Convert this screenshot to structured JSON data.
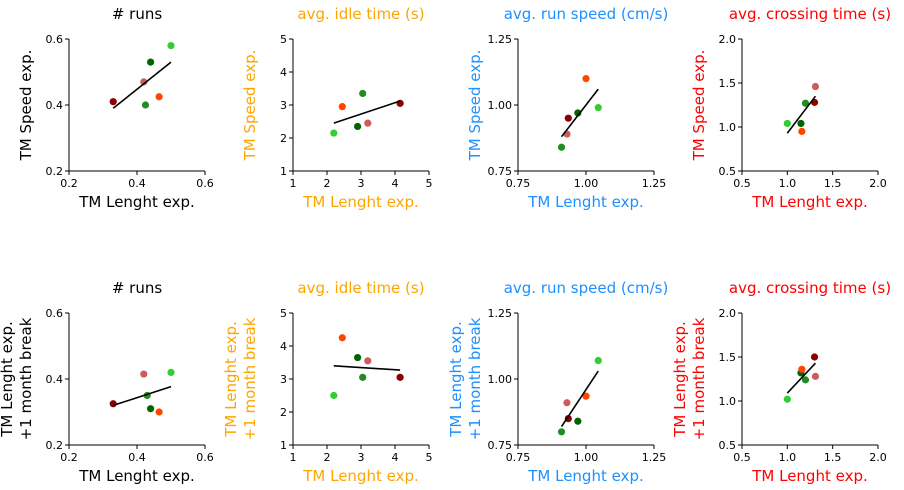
{
  "colors": {
    "black": "#000000",
    "orange": "#FFA500",
    "blue": "#1E90FF",
    "red": "#FF0000",
    "point_palette": [
      "#8B0000",
      "#CD5C5C",
      "#FF4500",
      "#006400",
      "#228B22",
      "#32CD32"
    ]
  },
  "chart_data": [
    {
      "type": "scatter",
      "title": "# runs",
      "color": "#000000",
      "xlabel": "TM Lenght exp.",
      "ylabel": [
        "TM Speed exp."
      ],
      "xlim": [
        0.2,
        0.6
      ],
      "ylim": [
        0.2,
        0.6
      ],
      "xticks": [
        "0.2",
        "0.4",
        "0.6"
      ],
      "yticks": [
        "0.2",
        "0.4",
        "0.6"
      ],
      "points": [
        {
          "x": 0.33,
          "y": 0.41,
          "color": "#8B0000"
        },
        {
          "x": 0.42,
          "y": 0.47,
          "color": "#CD5C5C"
        },
        {
          "x": 0.425,
          "y": 0.4,
          "color": "#228B22"
        },
        {
          "x": 0.44,
          "y": 0.53,
          "color": "#006400"
        },
        {
          "x": 0.465,
          "y": 0.425,
          "color": "#FF4500"
        },
        {
          "x": 0.5,
          "y": 0.58,
          "color": "#32CD32"
        }
      ],
      "fit": [
        [
          0.33,
          0.39
        ],
        [
          0.5,
          0.53
        ]
      ]
    },
    {
      "type": "scatter",
      "title": "avg. idle time (s)",
      "color": "#FFA500",
      "xlabel": "TM Lenght exp.",
      "ylabel": [
        "TM Speed exp."
      ],
      "xlim": [
        1,
        5
      ],
      "ylim": [
        1,
        5
      ],
      "xticks": [
        "1",
        "2",
        "3",
        "4",
        "5"
      ],
      "yticks": [
        "1",
        "2",
        "3",
        "4",
        "5"
      ],
      "points": [
        {
          "x": 2.2,
          "y": 2.15,
          "color": "#32CD32"
        },
        {
          "x": 2.45,
          "y": 2.95,
          "color": "#FF4500"
        },
        {
          "x": 2.9,
          "y": 2.35,
          "color": "#006400"
        },
        {
          "x": 3.05,
          "y": 3.35,
          "color": "#228B22"
        },
        {
          "x": 3.2,
          "y": 2.45,
          "color": "#CD5C5C"
        },
        {
          "x": 4.15,
          "y": 3.05,
          "color": "#8B0000"
        }
      ],
      "fit": [
        [
          2.2,
          2.45
        ],
        [
          4.15,
          3.12
        ]
      ]
    },
    {
      "type": "scatter",
      "title": "avg. run speed (cm/s)",
      "color": "#1E90FF",
      "xlabel": "TM Lenght exp.",
      "ylabel": [
        "TM Speed exp."
      ],
      "xlim": [
        0.75,
        1.25
      ],
      "ylim": [
        0.75,
        1.25
      ],
      "xticks": [
        "0.75",
        "1.00",
        "1.25"
      ],
      "yticks": [
        "0.75",
        "1.00",
        "1.25"
      ],
      "points": [
        {
          "x": 0.91,
          "y": 0.84,
          "color": "#228B22"
        },
        {
          "x": 0.93,
          "y": 0.89,
          "color": "#CD5C5C"
        },
        {
          "x": 0.935,
          "y": 0.95,
          "color": "#8B0000"
        },
        {
          "x": 0.97,
          "y": 0.97,
          "color": "#006400"
        },
        {
          "x": 1.0,
          "y": 1.1,
          "color": "#FF4500"
        },
        {
          "x": 1.045,
          "y": 0.99,
          "color": "#32CD32"
        }
      ],
      "fit": [
        [
          0.91,
          0.88
        ],
        [
          1.045,
          1.06
        ]
      ]
    },
    {
      "type": "scatter",
      "title": "avg. crossing time (s)",
      "color": "#FF0000",
      "xlabel": "TM Lenght exp.",
      "ylabel": [
        "TM Speed exp."
      ],
      "xlim": [
        0.5,
        2.0
      ],
      "ylim": [
        0.5,
        2.0
      ],
      "xticks": [
        "0.5",
        "1.0",
        "1.5",
        "2.0"
      ],
      "yticks": [
        "0.5",
        "1.0",
        "1.5",
        "2.0"
      ],
      "points": [
        {
          "x": 1.0,
          "y": 1.04,
          "color": "#32CD32"
        },
        {
          "x": 1.15,
          "y": 1.04,
          "color": "#006400"
        },
        {
          "x": 1.16,
          "y": 0.95,
          "color": "#FF4500"
        },
        {
          "x": 1.2,
          "y": 1.27,
          "color": "#228B22"
        },
        {
          "x": 1.3,
          "y": 1.28,
          "color": "#8B0000"
        },
        {
          "x": 1.31,
          "y": 1.46,
          "color": "#CD5C5C"
        }
      ],
      "fit": [
        [
          1.0,
          0.93
        ],
        [
          1.31,
          1.35
        ]
      ]
    },
    {
      "type": "scatter",
      "title": "# runs",
      "color": "#000000",
      "xlabel": "TM Lenght exp.",
      "ylabel": [
        "TM Lenght exp.",
        "+1 month break"
      ],
      "xlim": [
        0.2,
        0.6
      ],
      "ylim": [
        0.2,
        0.6
      ],
      "xticks": [
        "0.2",
        "0.4",
        "0.6"
      ],
      "yticks": [
        "0.2",
        "0.4",
        "0.6"
      ],
      "points": [
        {
          "x": 0.33,
          "y": 0.325,
          "color": "#8B0000"
        },
        {
          "x": 0.42,
          "y": 0.415,
          "color": "#CD5C5C"
        },
        {
          "x": 0.43,
          "y": 0.35,
          "color": "#228B22"
        },
        {
          "x": 0.44,
          "y": 0.31,
          "color": "#006400"
        },
        {
          "x": 0.465,
          "y": 0.3,
          "color": "#FF4500"
        },
        {
          "x": 0.5,
          "y": 0.42,
          "color": "#32CD32"
        }
      ],
      "fit": [
        [
          0.33,
          0.32
        ],
        [
          0.5,
          0.377
        ]
      ]
    },
    {
      "type": "scatter",
      "title": "avg. idle time (s)",
      "color": "#FFA500",
      "xlabel": "TM Lenght exp.",
      "ylabel": [
        "TM Lenght exp.",
        "+1 month break"
      ],
      "xlim": [
        1,
        5
      ],
      "ylim": [
        1,
        5
      ],
      "xticks": [
        "1",
        "2",
        "3",
        "4",
        "5"
      ],
      "yticks": [
        "1",
        "2",
        "3",
        "4",
        "5"
      ],
      "points": [
        {
          "x": 2.2,
          "y": 2.5,
          "color": "#32CD32"
        },
        {
          "x": 2.45,
          "y": 4.25,
          "color": "#FF4500"
        },
        {
          "x": 2.9,
          "y": 3.65,
          "color": "#006400"
        },
        {
          "x": 3.05,
          "y": 3.05,
          "color": "#228B22"
        },
        {
          "x": 3.2,
          "y": 3.55,
          "color": "#CD5C5C"
        },
        {
          "x": 4.15,
          "y": 3.05,
          "color": "#8B0000"
        }
      ],
      "fit": [
        [
          2.2,
          3.4
        ],
        [
          4.15,
          3.27
        ]
      ]
    },
    {
      "type": "scatter",
      "title": "avg. run speed (cm/s)",
      "color": "#1E90FF",
      "xlabel": "TM Lenght exp.",
      "ylabel": [
        "TM Lenght exp.",
        "+1 month break"
      ],
      "xlim": [
        0.75,
        1.25
      ],
      "ylim": [
        0.75,
        1.25
      ],
      "xticks": [
        "0.75",
        "1.00",
        "1.25"
      ],
      "yticks": [
        "0.75",
        "1.00",
        "1.25"
      ],
      "points": [
        {
          "x": 0.91,
          "y": 0.8,
          "color": "#228B22"
        },
        {
          "x": 0.93,
          "y": 0.91,
          "color": "#CD5C5C"
        },
        {
          "x": 0.935,
          "y": 0.85,
          "color": "#8B0000"
        },
        {
          "x": 0.97,
          "y": 0.84,
          "color": "#006400"
        },
        {
          "x": 1.0,
          "y": 0.935,
          "color": "#FF4500"
        },
        {
          "x": 1.045,
          "y": 1.07,
          "color": "#32CD32"
        }
      ],
      "fit": [
        [
          0.91,
          0.82
        ],
        [
          1.045,
          1.03
        ]
      ]
    },
    {
      "type": "scatter",
      "title": "avg. crossing time (s)",
      "color": "#FF0000",
      "xlabel": "TM Lenght exp.",
      "ylabel": [
        "TM Lenght exp.",
        "+1 month break"
      ],
      "xlim": [
        0.5,
        2.0
      ],
      "ylim": [
        0.5,
        2.0
      ],
      "xticks": [
        "0.5",
        "1.0",
        "1.5",
        "2.0"
      ],
      "yticks": [
        "0.5",
        "1.0",
        "1.5",
        "2.0"
      ],
      "points": [
        {
          "x": 1.0,
          "y": 1.02,
          "color": "#32CD32"
        },
        {
          "x": 1.15,
          "y": 1.32,
          "color": "#006400"
        },
        {
          "x": 1.16,
          "y": 1.36,
          "color": "#FF4500"
        },
        {
          "x": 1.2,
          "y": 1.24,
          "color": "#228B22"
        },
        {
          "x": 1.3,
          "y": 1.5,
          "color": "#8B0000"
        },
        {
          "x": 1.31,
          "y": 1.28,
          "color": "#CD5C5C"
        }
      ],
      "fit": [
        [
          1.0,
          1.09
        ],
        [
          1.31,
          1.43
        ]
      ]
    }
  ]
}
